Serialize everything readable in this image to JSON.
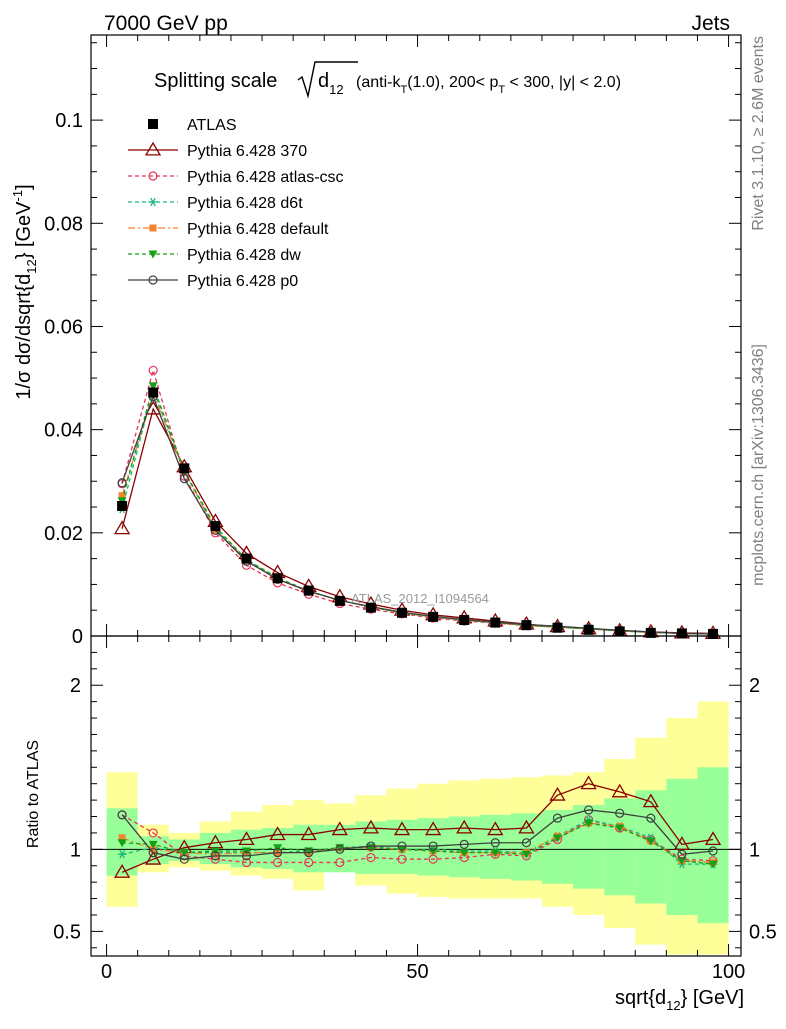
{
  "header": {
    "left": "7000 GeV pp",
    "right": "Jets"
  },
  "side": {
    "rivet": "Rivet 3.1.10, ≥ 2.6M events",
    "mcplots": "mcplots.cern.ch [arXiv:1306.3436]"
  },
  "chart_data": [
    {
      "panel": "main",
      "type": "line",
      "title": "Splitting scale √d12 (anti-kT(1.0), 200< pT < 300, |y| < 2.0)",
      "ylabel": "1/σ dσ/dsqrt{d12} [GeV-1]",
      "watermark": "ATLAS_2012_I1094564",
      "xlim": [
        -2.5,
        102
      ],
      "ylim": [
        0,
        0.1165
      ],
      "yticks": [
        0,
        0.02,
        0.04,
        0.06,
        0.08,
        0.1
      ],
      "yticklabels": [
        "0",
        "0.02",
        "0.04",
        "0.06",
        "0.08",
        "0.1"
      ],
      "x": [
        2.5,
        7.5,
        12.5,
        17.5,
        22.5,
        27.5,
        32.5,
        37.5,
        42.5,
        47.5,
        52.5,
        57.5,
        62.5,
        67.5,
        72.5,
        77.5,
        82.5,
        87.5,
        92.5,
        97.5
      ],
      "data": {
        "name": "ATLAS",
        "values": [
          0.0252,
          0.0472,
          0.0325,
          0.0213,
          0.015,
          0.0112,
          0.0088,
          0.0068,
          0.0055,
          0.0045,
          0.0037,
          0.0031,
          0.0026,
          0.0021,
          0.0016,
          0.0012,
          0.0009,
          0.0006,
          0.0005,
          0.0004
        ]
      },
      "series": [
        {
          "name": "Pythia 6.428 370",
          "color": "#8b0000",
          "values": [
            0.0208,
            0.044,
            0.0328,
            0.0222,
            0.016,
            0.0123,
            0.0096,
            0.0076,
            0.0062,
            0.005,
            0.0041,
            0.0035,
            0.0029,
            0.0023,
            0.0018,
            0.0014,
            0.001,
            0.0008,
            0.0006,
            0.0005
          ]
        },
        {
          "name": "Pythia 6.428 atlas-csc",
          "color": "#e8345a",
          "values": [
            0.0295,
            0.0515,
            0.031,
            0.02,
            0.0137,
            0.0103,
            0.0081,
            0.0063,
            0.0052,
            0.0043,
            0.0035,
            0.0029,
            0.0025,
            0.002,
            0.0017,
            0.0014,
            0.001,
            0.0007,
            0.0005,
            0.0004
          ]
        },
        {
          "name": "Pythia 6.428 d6t",
          "color": "#1bb87d",
          "values": [
            0.0246,
            0.0478,
            0.0318,
            0.0208,
            0.0148,
            0.011,
            0.0087,
            0.0069,
            0.0056,
            0.0046,
            0.0037,
            0.0031,
            0.0026,
            0.0021,
            0.0017,
            0.0014,
            0.001,
            0.0007,
            0.0005,
            0.0004
          ]
        },
        {
          "name": "Pythia 6.428 default",
          "color": "#f58231",
          "values": [
            0.0272,
            0.047,
            0.032,
            0.0206,
            0.0147,
            0.011,
            0.0086,
            0.0069,
            0.0056,
            0.0045,
            0.0037,
            0.0031,
            0.0026,
            0.0021,
            0.0017,
            0.0014,
            0.001,
            0.0007,
            0.0005,
            0.0004
          ]
        },
        {
          "name": "Pythia 6.428 dw",
          "color": "#16a016",
          "values": [
            0.0262,
            0.0485,
            0.032,
            0.0212,
            0.0148,
            0.0113,
            0.0087,
            0.0069,
            0.0056,
            0.0045,
            0.0037,
            0.0031,
            0.0026,
            0.0021,
            0.0017,
            0.0014,
            0.001,
            0.0007,
            0.0005,
            0.0004
          ]
        },
        {
          "name": "Pythia 6.428 p0",
          "color": "#404040",
          "values": [
            0.0297,
            0.0464,
            0.0305,
            0.0205,
            0.0145,
            0.011,
            0.0087,
            0.0069,
            0.0057,
            0.0046,
            0.0038,
            0.0032,
            0.0027,
            0.0022,
            0.0019,
            0.0015,
            0.0011,
            0.0008,
            0.0005,
            0.0004
          ]
        }
      ]
    },
    {
      "panel": "ratio",
      "type": "line",
      "ylabel": "Ratio to ATLAS",
      "xlabel": "sqrt{d12} [GeV]",
      "xlim": [
        -2.5,
        102
      ],
      "ylim": [
        0.35,
        2.3
      ],
      "xticks": [
        0,
        50,
        100
      ],
      "yticks": [
        0.5,
        1,
        2
      ],
      "yticklabels": [
        "0.5",
        "1",
        "2"
      ],
      "x": [
        2.5,
        7.5,
        12.5,
        17.5,
        22.5,
        27.5,
        32.5,
        37.5,
        42.5,
        47.5,
        52.5,
        57.5,
        62.5,
        67.5,
        72.5,
        77.5,
        82.5,
        87.5,
        92.5,
        97.5
      ],
      "band_inner": [
        [
          0.84,
          1.25
        ],
        [
          0.91,
          1.08
        ],
        [
          0.93,
          1.06
        ],
        [
          0.91,
          1.1
        ],
        [
          0.89,
          1.12
        ],
        [
          0.88,
          1.13
        ],
        [
          0.86,
          1.15
        ],
        [
          0.86,
          1.15
        ],
        [
          0.85,
          1.17
        ],
        [
          0.85,
          1.18
        ],
        [
          0.84,
          1.19
        ],
        [
          0.83,
          1.2
        ],
        [
          0.82,
          1.21
        ],
        [
          0.81,
          1.22
        ],
        [
          0.79,
          1.24
        ],
        [
          0.76,
          1.27
        ],
        [
          0.72,
          1.31
        ],
        [
          0.67,
          1.36
        ],
        [
          0.6,
          1.43
        ],
        [
          0.55,
          1.5
        ]
      ],
      "band_outer": [
        [
          0.65,
          1.47
        ],
        [
          0.86,
          1.15
        ],
        [
          0.89,
          1.1
        ],
        [
          0.87,
          1.17
        ],
        [
          0.84,
          1.23
        ],
        [
          0.82,
          1.27
        ],
        [
          0.75,
          1.3
        ],
        [
          0.9,
          1.28
        ],
        [
          0.78,
          1.33
        ],
        [
          0.73,
          1.37
        ],
        [
          0.71,
          1.4
        ],
        [
          0.7,
          1.42
        ],
        [
          0.7,
          1.43
        ],
        [
          0.7,
          1.44
        ],
        [
          0.65,
          1.45
        ],
        [
          0.6,
          1.47
        ],
        [
          0.52,
          1.55
        ],
        [
          0.42,
          1.68
        ],
        [
          0.36,
          1.8
        ],
        [
          0.36,
          1.9
        ]
      ],
      "series": [
        {
          "name": "Pythia 6.428 370",
          "values": [
            0.86,
            0.94,
            1.01,
            1.04,
            1.06,
            1.09,
            1.09,
            1.12,
            1.13,
            1.12,
            1.12,
            1.13,
            1.12,
            1.13,
            1.33,
            1.4,
            1.35,
            1.29,
            1.03,
            1.06
          ]
        },
        {
          "name": "Pythia 6.428 atlas-csc",
          "values": [
            1.21,
            1.1,
            0.96,
            0.94,
            0.92,
            0.92,
            0.92,
            0.92,
            0.95,
            0.94,
            0.94,
            0.95,
            0.97,
            0.96,
            1.06,
            1.18,
            1.13,
            1.06,
            0.94,
            0.93
          ]
        },
        {
          "name": "Pythia 6.428 d6t",
          "values": [
            0.97,
            1.01,
            0.98,
            0.98,
            0.98,
            0.98,
            0.99,
            1.01,
            1.02,
            1.0,
            1.0,
            0.99,
            0.99,
            0.98,
            1.08,
            1.18,
            1.14,
            1.07,
            0.91,
            0.91
          ]
        },
        {
          "name": "Pythia 6.428 default",
          "values": [
            1.07,
            1.0,
            0.98,
            0.97,
            0.98,
            0.98,
            0.98,
            1.01,
            1.01,
            1.0,
            0.99,
            0.98,
            0.98,
            0.98,
            1.08,
            1.16,
            1.14,
            1.05,
            0.93,
            0.92
          ]
        },
        {
          "name": "Pythia 6.428 dw",
          "values": [
            1.04,
            1.03,
            0.98,
            0.99,
            0.99,
            1.01,
            0.99,
            1.01,
            1.01,
            1.0,
            0.99,
            0.98,
            0.98,
            0.97,
            1.07,
            1.16,
            1.13,
            1.05,
            0.93,
            0.91
          ]
        },
        {
          "name": "Pythia 6.428 p0",
          "values": [
            1.21,
            0.98,
            0.94,
            0.96,
            0.96,
            0.98,
            0.98,
            1.0,
            1.02,
            1.02,
            1.02,
            1.03,
            1.04,
            1.04,
            1.19,
            1.24,
            1.22,
            1.19,
            0.97,
            0.99
          ]
        }
      ]
    }
  ]
}
